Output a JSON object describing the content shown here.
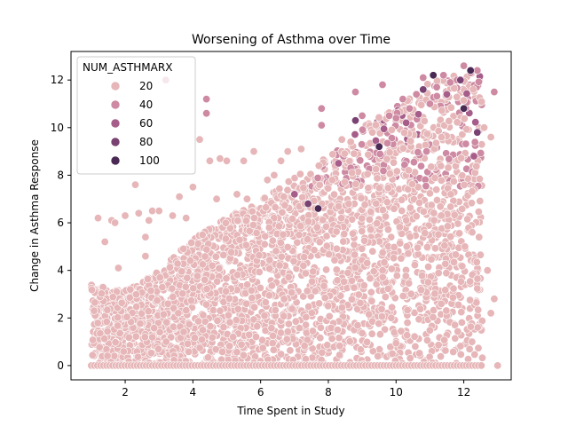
{
  "chart_data": {
    "type": "scatter",
    "title": "Worsening of Asthma over Time",
    "xlabel": "Time Spent in Study",
    "ylabel": "Change in Asthma Response",
    "xlim": [
      0.4,
      13.4
    ],
    "ylim": [
      -0.6,
      13.2
    ],
    "xticks": [
      2,
      4,
      6,
      8,
      10,
      12
    ],
    "yticks": [
      0,
      2,
      4,
      6,
      8,
      10,
      12
    ],
    "grid": false,
    "hue_variable": "NUM_ASTHMARX",
    "legend": {
      "title": "NUM_ASTHMARX",
      "placement": "upper-left",
      "entries": [
        {
          "label": "20",
          "color": "#e6b6b8"
        },
        {
          "label": "40",
          "color": "#cd8aa2"
        },
        {
          "label": "60",
          "color": "#a65d8a"
        },
        {
          "label": "80",
          "color": "#7a4273"
        },
        {
          "label": "100",
          "color": "#4a2a55"
        }
      ]
    },
    "point_density_note": "",
    "series": [
      {
        "name": "NUM_ASTHMARX",
        "points": [
          [
            1.2,
            6.2
          ],
          [
            1.4,
            5.2
          ],
          [
            1.6,
            6.1
          ],
          [
            1.7,
            6.0
          ],
          [
            1.8,
            4.1
          ],
          [
            2.0,
            6.3
          ],
          [
            2.3,
            7.6
          ],
          [
            2.4,
            6.4
          ],
          [
            2.6,
            4.6
          ],
          [
            2.6,
            5.4
          ],
          [
            2.7,
            6.1
          ],
          [
            2.8,
            6.5
          ],
          [
            3.0,
            6.5
          ],
          [
            3.2,
            12.0
          ],
          [
            3.4,
            6.3
          ],
          [
            3.6,
            7.1
          ],
          [
            3.8,
            6.2
          ],
          [
            4.0,
            7.5
          ],
          [
            4.2,
            9.5
          ],
          [
            4.4,
            10.6
          ],
          [
            4.4,
            11.2
          ],
          [
            4.5,
            8.6
          ],
          [
            4.7,
            7.0
          ],
          [
            4.8,
            8.7
          ],
          [
            5.0,
            8.6
          ],
          [
            5.3,
            7.2
          ],
          [
            5.5,
            8.6
          ],
          [
            5.6,
            7.0
          ],
          [
            5.8,
            9.0
          ],
          [
            6.2,
            7.8
          ],
          [
            6.4,
            8.0
          ],
          [
            6.6,
            8.6
          ],
          [
            6.8,
            9.0
          ],
          [
            7.0,
            7.2
          ],
          [
            7.2,
            9.1
          ],
          [
            7.3,
            6.8
          ],
          [
            7.6,
            6.6
          ],
          [
            7.8,
            10.1
          ],
          [
            7.8,
            10.8
          ],
          [
            8.2,
            8.4
          ],
          [
            8.4,
            9.5
          ],
          [
            8.7,
            8.1
          ],
          [
            8.8,
            11.5
          ],
          [
            9.0,
            10.5
          ],
          [
            9.3,
            9.8
          ],
          [
            9.6,
            11.8
          ],
          [
            9.8,
            10.5
          ],
          [
            10.0,
            10.4
          ],
          [
            10.2,
            11.2
          ],
          [
            10.4,
            10.8
          ],
          [
            10.6,
            11.4
          ],
          [
            10.8,
            12.1
          ],
          [
            11.0,
            11.0
          ],
          [
            11.2,
            11.7
          ],
          [
            11.4,
            12.2
          ],
          [
            11.6,
            11.9
          ],
          [
            11.8,
            12.0
          ],
          [
            12.0,
            12.6
          ],
          [
            12.2,
            12.3
          ],
          [
            12.4,
            12.4
          ],
          [
            12.6,
            10.0
          ],
          [
            12.7,
            4.0
          ],
          [
            12.8,
            2.2
          ],
          [
            12.8,
            9.6
          ],
          [
            12.9,
            11.5
          ],
          [
            12.9,
            2.8
          ],
          [
            13.0,
            0.0
          ]
        ],
        "band": {
          "x_min": 1.0,
          "x_max": 12.55,
          "y_min": 0.0,
          "upper_envelope": [
            [
              1.0,
              3.4
            ],
            [
              2.0,
              3.2
            ],
            [
              3.0,
              4.0
            ],
            [
              4.0,
              5.3
            ],
            [
              5.0,
              6.2
            ],
            [
              6.0,
              7.0
            ],
            [
              7.0,
              7.9
            ],
            [
              8.0,
              8.8
            ],
            [
              9.0,
              10.0
            ],
            [
              10.0,
              10.9
            ],
            [
              11.0,
              11.9
            ],
            [
              12.0,
              12.3
            ],
            [
              12.55,
              12.3
            ]
          ]
        },
        "dark_points": [
          [
            7.0,
            7.2
          ],
          [
            7.4,
            6.8
          ],
          [
            7.7,
            6.6
          ],
          [
            8.3,
            8.5
          ],
          [
            8.8,
            10.3
          ],
          [
            9.5,
            9.2
          ],
          [
            10.3,
            10.2
          ],
          [
            10.8,
            11.6
          ],
          [
            11.1,
            12.2
          ],
          [
            11.5,
            11.4
          ],
          [
            11.9,
            12.0
          ],
          [
            12.2,
            12.4
          ],
          [
            12.3,
            8.8
          ],
          [
            12.4,
            9.8
          ],
          [
            12.0,
            10.8
          ]
        ]
      }
    ]
  }
}
